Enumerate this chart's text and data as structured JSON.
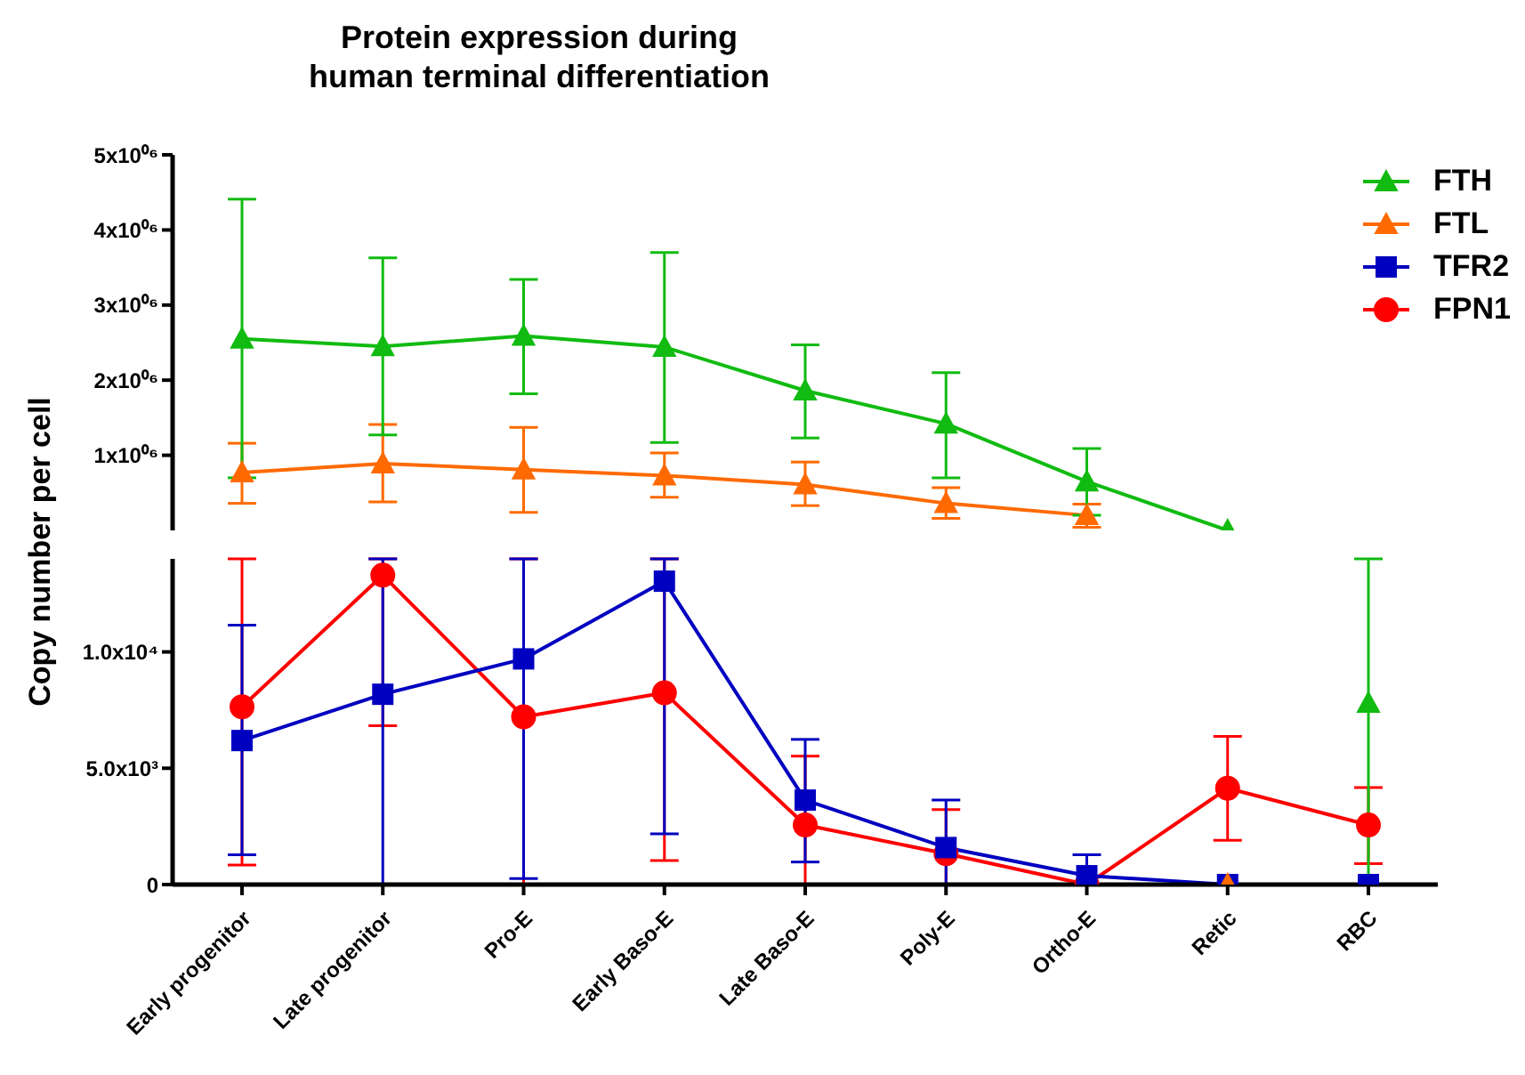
{
  "chart_data": [
    {
      "type": "line",
      "title": "Protein expression during\nhuman terminal differentiation",
      "ylabel": "Copy number per cell",
      "series": [
        {
          "name": "FTH",
          "color": "#11bb11",
          "marker": "triangle",
          "values": [
            2550000,
            2450000,
            2590000,
            2440000,
            1860000,
            1420000,
            650000,
            0,
            null
          ],
          "errors": [
            [
              700000,
              4410000
            ],
            [
              1270000,
              3630000
            ],
            [
              1820000,
              3340000
            ],
            [
              1170000,
              3700000
            ],
            [
              1230000,
              2470000
            ],
            [
              700000,
              2100000
            ],
            [
              200000,
              1090000
            ],
            null,
            null
          ]
        },
        {
          "name": "FTL",
          "color": "#ff6a00",
          "marker": "triangle",
          "values": [
            770000,
            890000,
            810000,
            730000,
            610000,
            360000,
            200000,
            null,
            null
          ],
          "errors": [
            [
              360000,
              1160000
            ],
            [
              380000,
              1410000
            ],
            [
              240000,
              1370000
            ],
            [
              440000,
              1030000
            ],
            [
              330000,
              910000
            ],
            [
              160000,
              570000
            ],
            [
              40000,
              350000
            ],
            null,
            null
          ]
        },
        {
          "name": "TFR2",
          "color": "#0000c0",
          "marker": "square",
          "values": [
            null,
            null,
            null,
            null,
            null,
            null,
            null,
            null,
            null
          ]
        },
        {
          "name": "FPN1",
          "color": "#ff0000",
          "marker": "circle",
          "values": [
            null,
            null,
            null,
            null,
            null,
            null,
            null,
            null,
            null
          ]
        }
      ],
      "ylim": [
        0,
        5000000
      ],
      "yticks": [
        {
          "value": 1000000,
          "label": "1x10⁰⁶"
        },
        {
          "value": 2000000,
          "label": "2x10⁰⁶"
        },
        {
          "value": 3000000,
          "label": "3x10⁰⁶"
        },
        {
          "value": 4000000,
          "label": "4x10⁰⁶"
        },
        {
          "value": 5000000,
          "label": "5x10⁰⁶"
        }
      ],
      "tick_labels": "y",
      "legend": "top right"
    },
    {
      "type": "line",
      "categories": [
        "Early progenitor",
        "Late progenitor",
        "Pro-E",
        "Early Baso-E",
        "Late Baso-E",
        "Poly-E",
        "Ortho-E",
        "Retic",
        "RBC"
      ],
      "series": [
        {
          "color": "#11bb11",
          "marker": "triangle",
          "values": [
            null,
            null,
            null,
            null,
            null,
            null,
            null,
            null,
            7800
          ],
          "errors": [
            null,
            null,
            null,
            null,
            null,
            null,
            null,
            null,
            [
              0,
              14000
            ]
          ]
        },
        {
          "color": "#ff6a00",
          "marker": "triangle",
          "values": [
            null,
            null,
            null,
            null,
            null,
            null,
            null,
            0,
            null
          ]
        },
        {
          "color": "#0000c0",
          "marker": "square",
          "values": [
            6190,
            8180,
            9700,
            13040,
            3630,
            1590,
            380,
            0,
            0
          ],
          "errors": [
            [
              1280,
              11150
            ],
            [
              0,
              14000
            ],
            [
              260,
              14000
            ],
            [
              2180,
              14000
            ],
            [
              970,
              6240
            ],
            [
              0,
              3630
            ],
            [
              0,
              1280
            ],
            null,
            null
          ]
        },
        {
          "color": "#ff0000",
          "marker": "circle",
          "values": [
            7640,
            13300,
            7210,
            8240,
            2560,
            1330,
            0,
            4140,
            2560
          ],
          "errors": [
            [
              840,
              14000
            ],
            [
              6830,
              14000
            ],
            [
              0,
              14000
            ],
            [
              1030,
              14000
            ],
            [
              0,
              5520
            ],
            [
              0,
              3220
            ],
            null,
            [
              1900,
              6370
            ],
            [
              900,
              4170
            ]
          ]
        }
      ],
      "ylim": [
        0,
        14000
      ],
      "yticks": [
        0,
        {
          "value": 5000,
          "label": "5.0x10³"
        },
        {
          "value": 10000,
          "label": "1.0x10⁴"
        }
      ]
    }
  ]
}
